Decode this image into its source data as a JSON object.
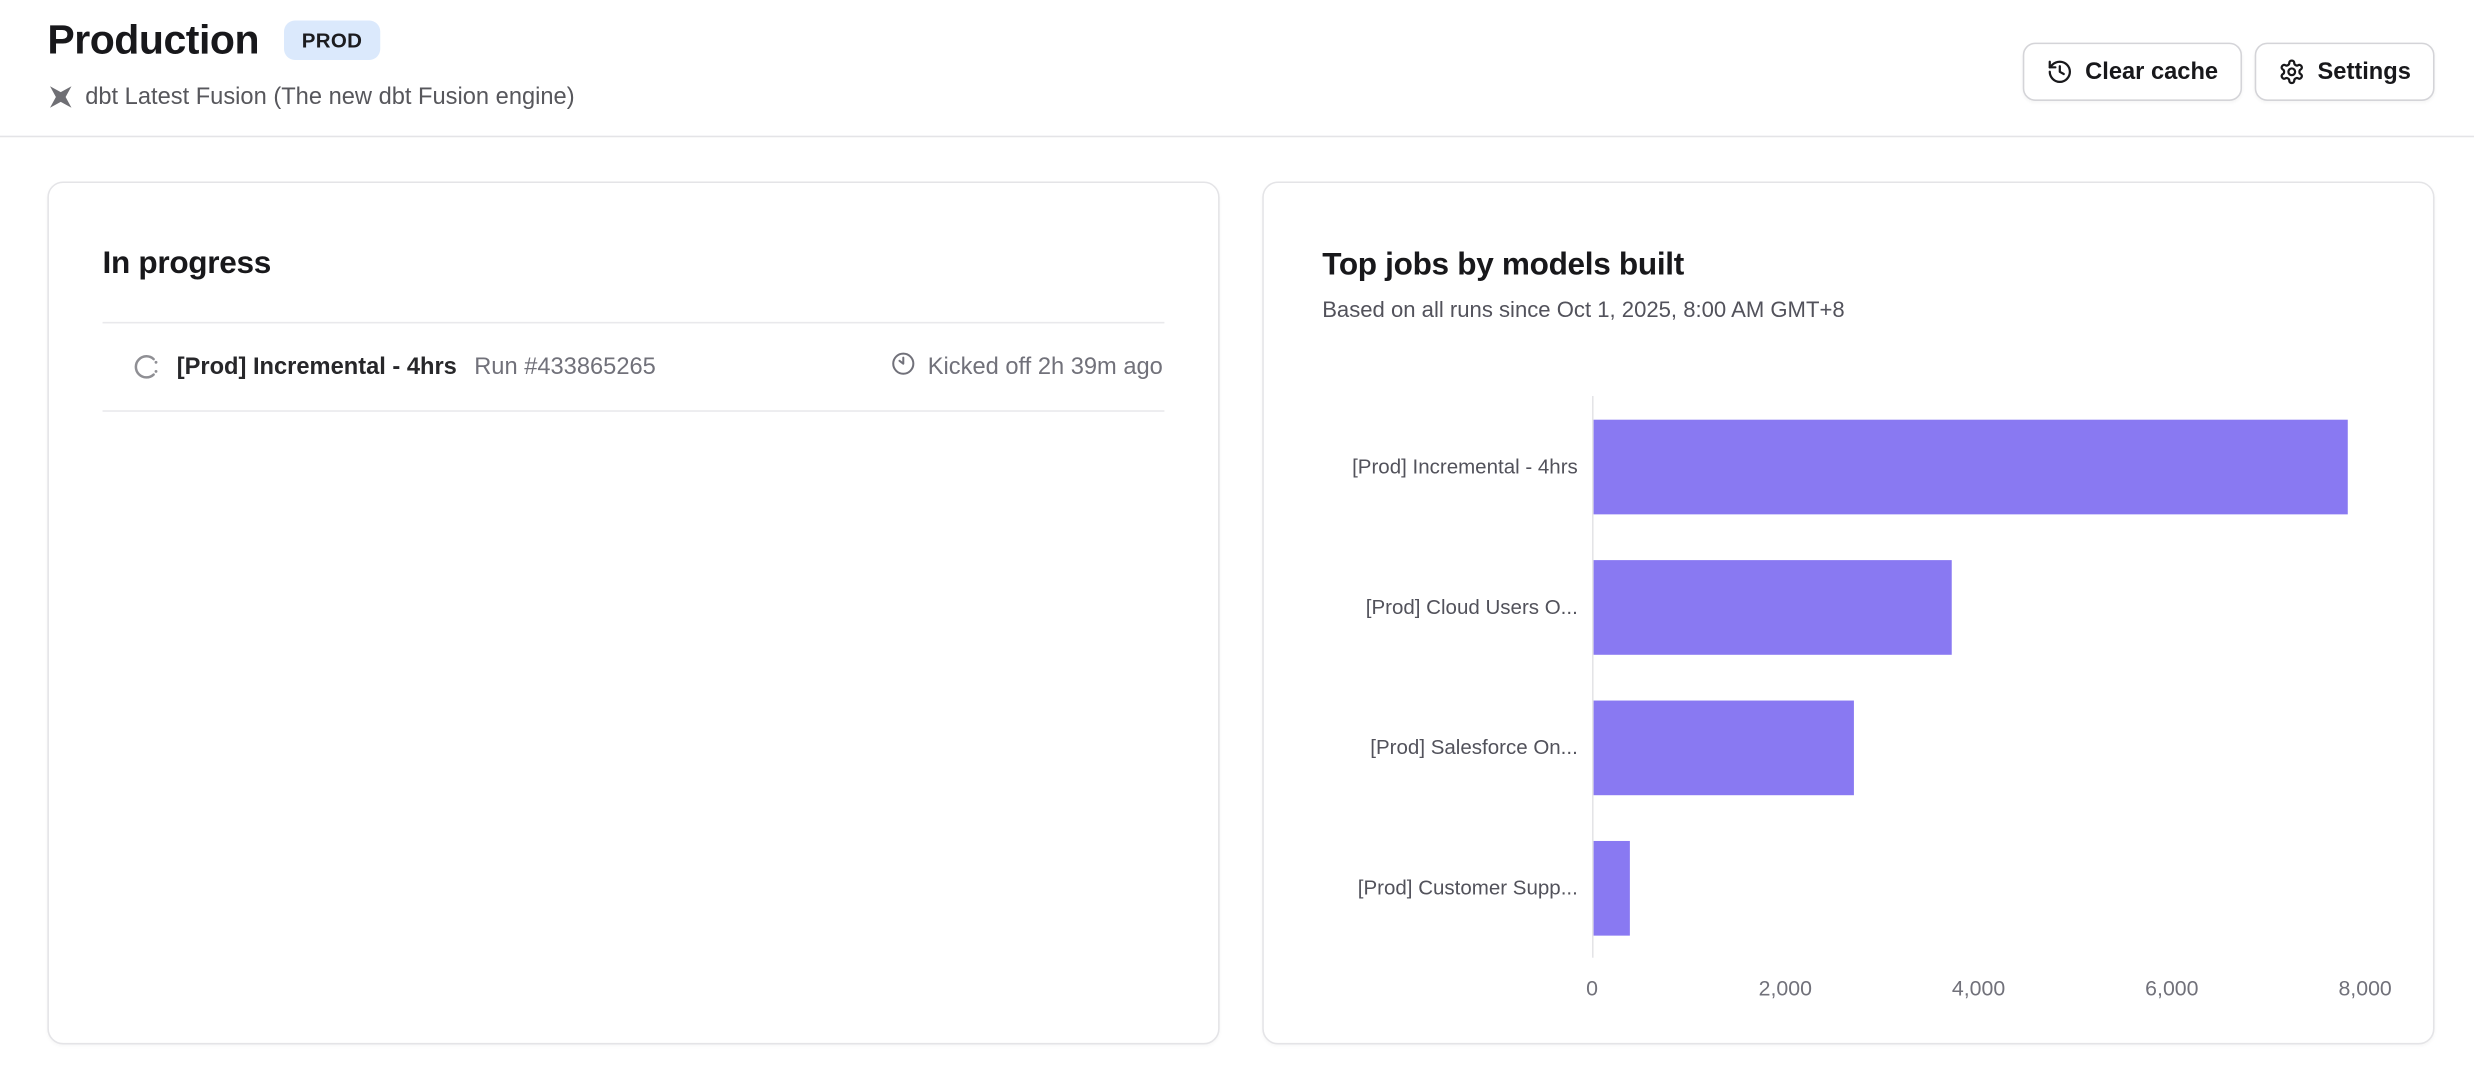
{
  "header": {
    "title": "Production",
    "badge": "PROD",
    "engine_label": "dbt Latest Fusion (The new dbt Fusion engine)",
    "clear_cache_label": "Clear cache",
    "settings_label": "Settings"
  },
  "in_progress": {
    "title": "In progress",
    "runs": [
      {
        "job_name": "[Prod] Incremental - 4hrs",
        "run_number": "Run #433865265",
        "kicked_off": "Kicked off 2h 39m ago"
      }
    ]
  },
  "chart_card": {
    "title": "Top jobs by models built",
    "subtitle": "Based on all runs since Oct 1, 2025, 8:00 AM GMT+8"
  },
  "chart_data": {
    "type": "bar",
    "orientation": "horizontal",
    "title": "Top jobs by models built",
    "categories": [
      "[Prod] Incremental - 4hrs",
      "[Prod] Cloud Users O...",
      "[Prod] Salesforce On...",
      "[Prod] Customer Supp..."
    ],
    "values": [
      7800,
      3700,
      2700,
      380
    ],
    "xlim": [
      0,
      8000
    ],
    "xticks": [
      0,
      2000,
      4000,
      6000,
      8000
    ],
    "xtick_labels": [
      "0",
      "2,000",
      "4,000",
      "6,000",
      "8,000"
    ],
    "xlabel": "",
    "ylabel": "",
    "grid": false,
    "legend": false,
    "bar_color": "#8979F2"
  },
  "colors": {
    "accent_purple": "#8979F2",
    "badge_bg": "#dbe9fc",
    "card_border": "#e4e4e7",
    "muted_text": "#71717a"
  }
}
